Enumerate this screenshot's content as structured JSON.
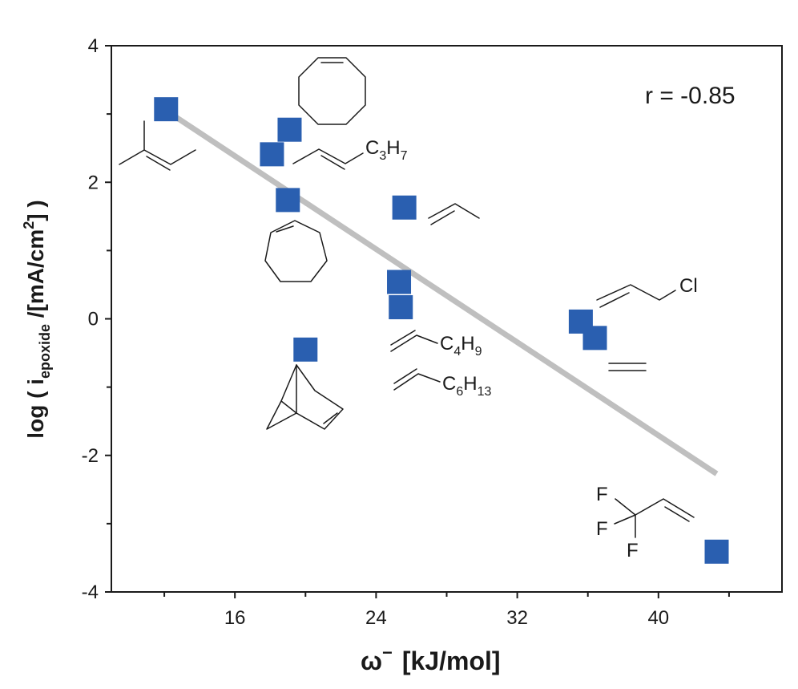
{
  "chart_data": {
    "type": "scatter",
    "x_label_main": "ω",
    "x_label_sup": "−",
    "x_label_units": "[kJ/mol]",
    "y_label_prefix": "log ( i",
    "y_label_sub": "epoxide",
    "y_label_mid": " /[mA/cm",
    "y_label_sup": "2",
    "y_label_suffix": "] )",
    "xlim": [
      9,
      47
    ],
    "ylim": [
      -4,
      4
    ],
    "x_ticks": [
      16,
      24,
      32,
      40
    ],
    "x_tick_labels": [
      "16",
      "24",
      "32",
      "40"
    ],
    "x_minor_ticks": [
      12,
      20,
      28,
      36,
      44
    ],
    "y_ticks": [
      4,
      2,
      0,
      -2,
      -4
    ],
    "y_tick_labels": [
      "4",
      "2",
      "0",
      "-2",
      "-4"
    ],
    "y_minor_ticks": [
      3,
      1,
      -1,
      -3
    ],
    "grid": false,
    "annotation": "r = -0.85",
    "marker_color": "#2a5fb0",
    "fit_color": "#bfbfbf",
    "points": [
      {
        "x": 12.1,
        "y": 3.07
      },
      {
        "x": 18.1,
        "y": 2.41
      },
      {
        "x": 19.1,
        "y": 2.77
      },
      {
        "x": 19.0,
        "y": 1.74
      },
      {
        "x": 20.0,
        "y": -0.45
      },
      {
        "x": 25.3,
        "y": 0.54
      },
      {
        "x": 25.4,
        "y": 0.17
      },
      {
        "x": 25.6,
        "y": 1.63
      },
      {
        "x": 35.6,
        "y": -0.04
      },
      {
        "x": 36.4,
        "y": -0.28
      },
      {
        "x": 43.3,
        "y": -3.41
      }
    ],
    "fit_line": {
      "x": [
        12.1,
        43.3
      ],
      "y": [
        3.05,
        -2.27
      ]
    },
    "molecule_labels": {
      "propyl_base": "C",
      "propyl_sub1": "3",
      "propyl_mid": "H",
      "propyl_sub2": "7",
      "butyl_base": "C",
      "butyl_sub1": "4",
      "butyl_mid": "H",
      "butyl_sub2": "9",
      "hexyl_base": "C",
      "hexyl_sub1": "6",
      "hexyl_mid": "H",
      "hexyl_sub2": "13",
      "chloro": "Cl",
      "fluoro1": "F",
      "fluoro2": "F",
      "fluoro3": "F"
    }
  }
}
